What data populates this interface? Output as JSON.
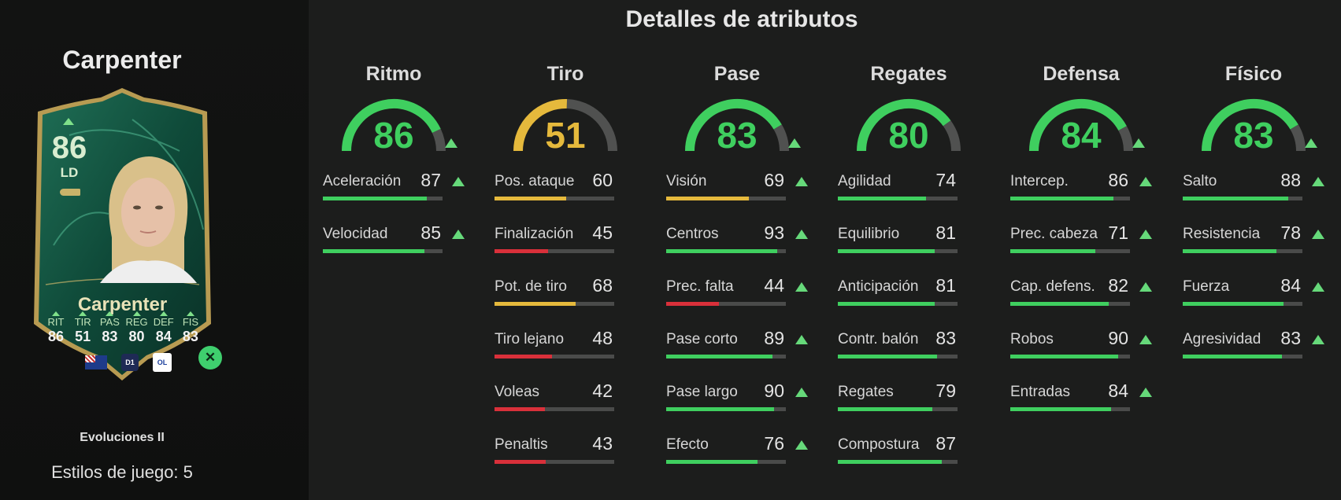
{
  "page_title": "Detalles de atributos",
  "player": {
    "name": "Carpenter",
    "card": {
      "rating": "86",
      "position": "LD",
      "name": "Carpenter",
      "stats": [
        {
          "label": "RIT",
          "value": "86"
        },
        {
          "label": "TIR",
          "value": "51"
        },
        {
          "label": "PAS",
          "value": "83"
        },
        {
          "label": "REG",
          "value": "80"
        },
        {
          "label": "DEF",
          "value": "84"
        },
        {
          "label": "FIS",
          "value": "83"
        }
      ],
      "nation_icon": "australia-flag-icon",
      "league_icon": "arkema-league-icon",
      "club_icon": "olympique-lyonnais-icon",
      "evolution_icon": "evolution-icon"
    },
    "evolution_label": "Evoluciones II",
    "playstyles": "Estilos de juego: 5"
  },
  "colors": {
    "high": "#3fcf5f",
    "medium": "#e5b93c",
    "low": "#d9303a",
    "track": "#4a4b4a",
    "upgrade_arrow": "#66d97a"
  },
  "categories": [
    {
      "name": "Ritmo",
      "value": 86,
      "upgraded": true,
      "attributes": [
        {
          "name": "Aceleración",
          "value": 87,
          "upgraded": true
        },
        {
          "name": "Velocidad",
          "value": 85,
          "upgraded": true
        }
      ]
    },
    {
      "name": "Tiro",
      "value": 51,
      "upgraded": false,
      "attributes": [
        {
          "name": "Pos. ataque",
          "value": 60,
          "upgraded": false
        },
        {
          "name": "Finalización",
          "value": 45,
          "upgraded": false
        },
        {
          "name": "Pot. de tiro",
          "value": 68,
          "upgraded": false
        },
        {
          "name": "Tiro lejano",
          "value": 48,
          "upgraded": false
        },
        {
          "name": "Voleas",
          "value": 42,
          "upgraded": false
        },
        {
          "name": "Penaltis",
          "value": 43,
          "upgraded": false
        }
      ]
    },
    {
      "name": "Pase",
      "value": 83,
      "upgraded": true,
      "attributes": [
        {
          "name": "Visión",
          "value": 69,
          "upgraded": true
        },
        {
          "name": "Centros",
          "value": 93,
          "upgraded": true
        },
        {
          "name": "Prec. falta",
          "value": 44,
          "upgraded": true
        },
        {
          "name": "Pase corto",
          "value": 89,
          "upgraded": true
        },
        {
          "name": "Pase largo",
          "value": 90,
          "upgraded": true
        },
        {
          "name": "Efecto",
          "value": 76,
          "upgraded": true
        }
      ]
    },
    {
      "name": "Regates",
      "value": 80,
      "upgraded": false,
      "attributes": [
        {
          "name": "Agilidad",
          "value": 74,
          "upgraded": false
        },
        {
          "name": "Equilibrio",
          "value": 81,
          "upgraded": false
        },
        {
          "name": "Anticipación",
          "value": 81,
          "upgraded": false
        },
        {
          "name": "Contr. balón",
          "value": 83,
          "upgraded": false
        },
        {
          "name": "Regates",
          "value": 79,
          "upgraded": false
        },
        {
          "name": "Compostura",
          "value": 87,
          "upgraded": false
        }
      ]
    },
    {
      "name": "Defensa",
      "value": 84,
      "upgraded": true,
      "attributes": [
        {
          "name": "Intercep.",
          "value": 86,
          "upgraded": true
        },
        {
          "name": "Prec. cabeza",
          "value": 71,
          "upgraded": true
        },
        {
          "name": "Cap. defens.",
          "value": 82,
          "upgraded": true
        },
        {
          "name": "Robos",
          "value": 90,
          "upgraded": true
        },
        {
          "name": "Entradas",
          "value": 84,
          "upgraded": true
        }
      ]
    },
    {
      "name": "Físico",
      "value": 83,
      "upgraded": true,
      "attributes": [
        {
          "name": "Salto",
          "value": 88,
          "upgraded": true
        },
        {
          "name": "Resistencia",
          "value": 78,
          "upgraded": true
        },
        {
          "name": "Fuerza",
          "value": 84,
          "upgraded": true
        },
        {
          "name": "Agresividad",
          "value": 83,
          "upgraded": true
        }
      ]
    }
  ]
}
